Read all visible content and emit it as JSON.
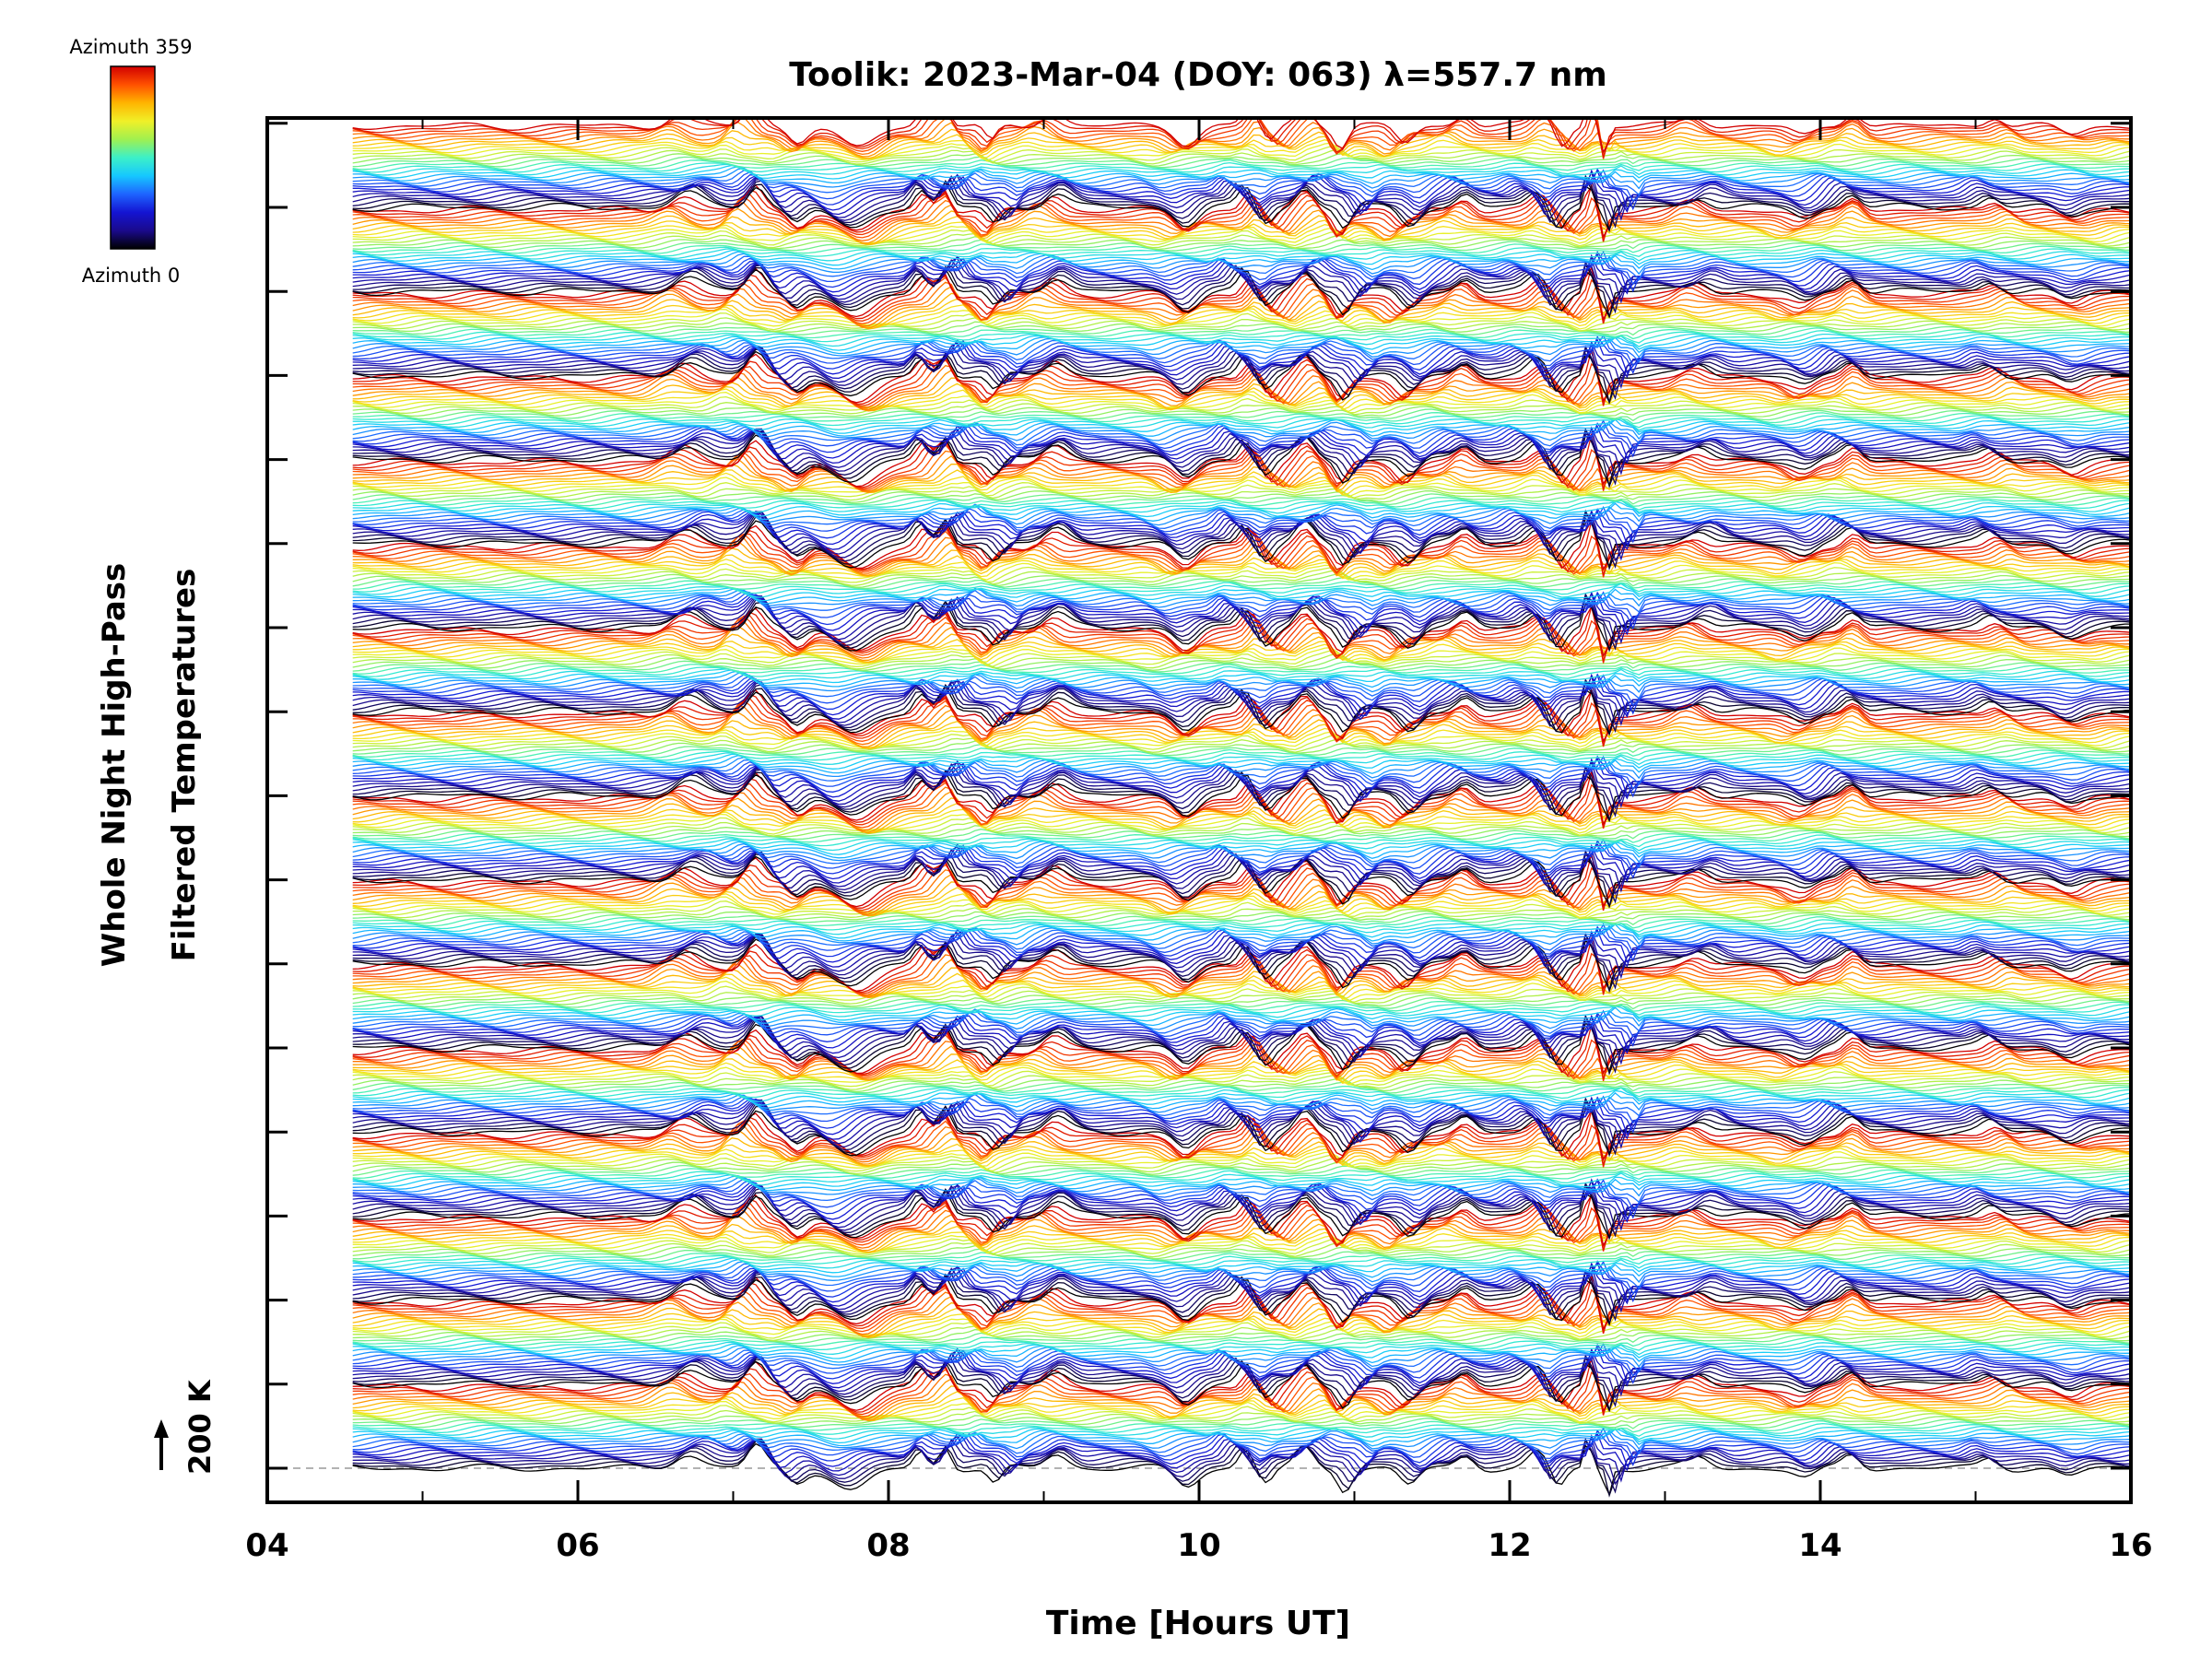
{
  "title": "Toolik: 2023-Mar-04 (DOY: 063) λ=557.7 nm",
  "colorbar": {
    "top_label": "Azimuth 359",
    "bottom_label": "Azimuth 0",
    "colormap": [
      "#000000",
      "#1a0a8c",
      "#1414d2",
      "#1e64ff",
      "#16c8ff",
      "#3cf0c8",
      "#a0f050",
      "#f0f028",
      "#ffb400",
      "#ff5000",
      "#d20000"
    ]
  },
  "chart_data": {
    "type": "line",
    "title": "Toolik: 2023-Mar-04 (DOY: 063) λ=557.7 nm",
    "xlabel": "Time [Hours UT]",
    "ylabel_line1": "Whole Night High-Pass",
    "ylabel_line2": "Filtered Temperatures",
    "xlim": [
      4,
      16
    ],
    "x_ticks": [
      "04",
      "06",
      "08",
      "10",
      "12",
      "14",
      "16"
    ],
    "x_start": 4.55,
    "x_end": 16.0,
    "scale_bar": {
      "label": "200 K",
      "kelvin": 200
    },
    "n_traces": 16,
    "n_azimuth_levels": 30,
    "azimuth_range": [
      0,
      359
    ],
    "trace_offset_kelvin": 200,
    "grid": false,
    "legend": "colorbar top-left",
    "events": [
      {
        "t": 6.7,
        "amp": 35,
        "w": 0.12
      },
      {
        "t": 7.05,
        "amp": 55,
        "w": 0.08
      },
      {
        "t": 7.3,
        "amp": -35,
        "w": 0.08
      },
      {
        "t": 7.75,
        "amp": -55,
        "w": 0.15
      },
      {
        "t": 8.3,
        "amp": 40,
        "w": 0.06
      },
      {
        "t": 8.48,
        "amp": 55,
        "w": 0.05
      },
      {
        "t": 8.72,
        "amp": -40,
        "w": 0.06
      },
      {
        "t": 9.0,
        "amp": 35,
        "w": 0.1
      },
      {
        "t": 9.8,
        "amp": -40,
        "w": 0.1
      },
      {
        "t": 10.25,
        "amp": 45,
        "w": 0.06
      },
      {
        "t": 10.5,
        "amp": -35,
        "w": 0.06
      },
      {
        "t": 10.8,
        "amp": 45,
        "w": 0.08
      },
      {
        "t": 11.0,
        "amp": -50,
        "w": 0.06
      },
      {
        "t": 11.3,
        "amp": -40,
        "w": 0.08
      },
      {
        "t": 11.6,
        "amp": 30,
        "w": 0.08
      },
      {
        "t": 12.1,
        "amp": 35,
        "w": 0.08
      },
      {
        "t": 12.35,
        "amp": -45,
        "w": 0.06
      },
      {
        "t": 12.62,
        "amp": 70,
        "w": 0.03
      },
      {
        "t": 12.72,
        "amp": -70,
        "w": 0.03
      },
      {
        "t": 13.2,
        "amp": 25,
        "w": 0.1
      },
      {
        "t": 13.8,
        "amp": -25,
        "w": 0.1
      },
      {
        "t": 14.1,
        "amp": 35,
        "w": 0.08
      },
      {
        "t": 15.1,
        "amp": 25,
        "w": 0.08
      },
      {
        "t": 15.7,
        "amp": -20,
        "w": 0.1
      }
    ]
  }
}
